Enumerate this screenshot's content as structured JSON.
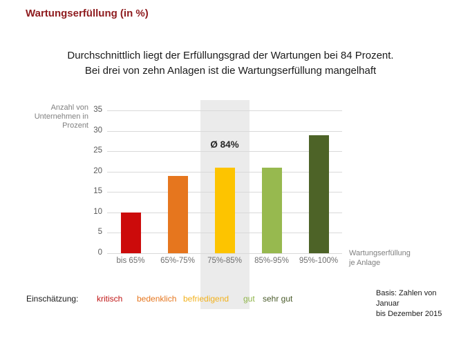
{
  "title": "Wartungserfüllung (in %)",
  "subtitle": "Durchschnittlich liegt der Erfüllungsgrad der Wartungen bei 84 Prozent.\nBei drei von zehn Anlagen ist die Wartungserfüllung mangelhaft",
  "chart_data": {
    "type": "bar",
    "title": "Wartungserfüllung (in %)",
    "categories": [
      "bis 65%",
      "65%-75%",
      "75%-85%",
      "85%-95%",
      "95%-100%"
    ],
    "values": [
      10,
      19,
      21,
      21,
      29
    ],
    "bar_colors": [
      "#cc0b0b",
      "#e6761e",
      "#fdc400",
      "#97b94f",
      "#4d6327"
    ],
    "ylabel": "Anzahl von\nUnternehmen in\nProzent",
    "xlabel": "Wartungserfüllung\nje Anlage",
    "ylim": [
      0,
      35
    ],
    "ytick_step": 5,
    "grid": true,
    "gridline_color": "#d9d9d9",
    "annotation": {
      "text": "Ø 84%",
      "category_index": 2
    },
    "highlight": {
      "category_index": 2,
      "color": "#ebebeb"
    }
  },
  "legend": {
    "label": "Einschätzung:",
    "items": [
      {
        "text": "kritisch",
        "color": "#c01515"
      },
      {
        "text": "bedenklich",
        "color": "#e6761e"
      },
      {
        "text": "befriedigend",
        "color": "#f2b11c"
      },
      {
        "text": "gut",
        "color": "#8fb54a"
      },
      {
        "text": "sehr gut",
        "color": "#4a5b2b"
      }
    ]
  },
  "footer": {
    "text": "Basis: Zahlen von Januar\nbis Dezember 2015"
  },
  "colors": {
    "title": "#8e1b1e",
    "body_text": "#1a1a1a",
    "axis_text": "#7f7f7f",
    "background": "#ffffff"
  }
}
